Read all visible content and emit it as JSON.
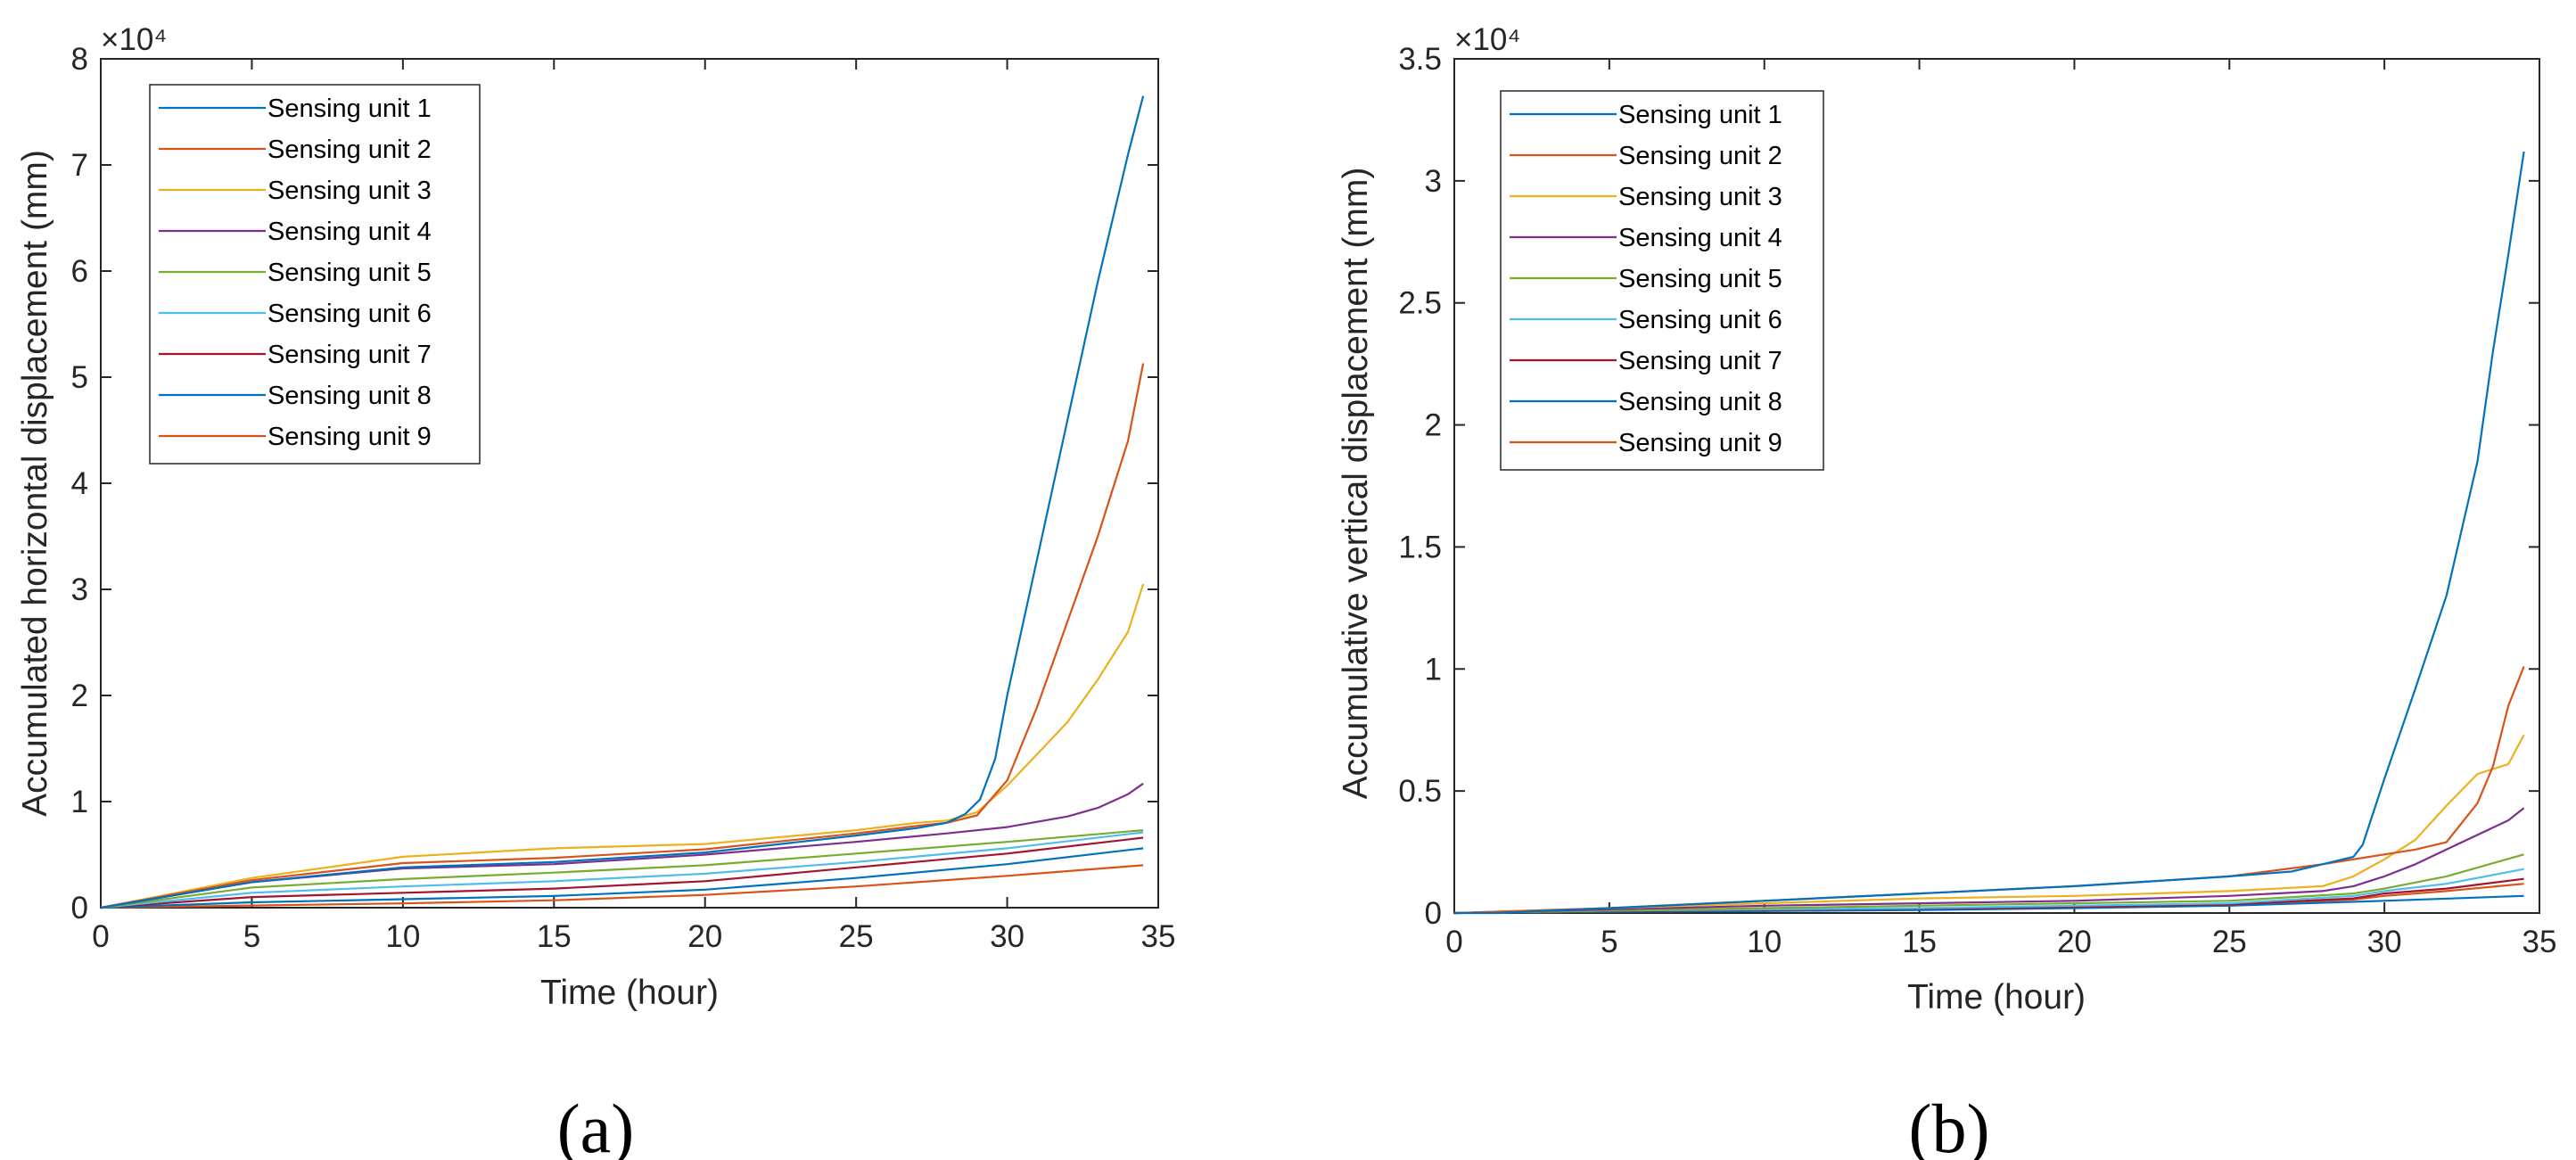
{
  "chart_data": [
    {
      "type": "line",
      "panel_label": "(a)",
      "xlabel": "Time (hour)",
      "ylabel": "Accumulated horizontal displacement (mm)",
      "exponent_label": "×10⁴",
      "xlim": [
        0,
        35
      ],
      "ylim": [
        0,
        8
      ],
      "xticks": [
        0,
        5,
        10,
        15,
        20,
        25,
        30,
        35
      ],
      "yticks": [
        0,
        1,
        2,
        3,
        4,
        5,
        6,
        7,
        8
      ],
      "ytick_labels": [
        "0",
        "1",
        "2",
        "3",
        "4",
        "5",
        "6",
        "7",
        "8"
      ],
      "grid": false,
      "legend_position": "top-left",
      "series": [
        {
          "name": "Sensing unit 1",
          "color": "#0072BD",
          "x": [
            0,
            5,
            10,
            15,
            20,
            25,
            27,
            28,
            28.6,
            29.1,
            29.6,
            30,
            31,
            32,
            33,
            34,
            34.5
          ],
          "y": [
            0,
            0.24,
            0.38,
            0.43,
            0.52,
            0.68,
            0.75,
            0.8,
            0.88,
            1.02,
            1.4,
            2.0,
            3.3,
            4.6,
            5.9,
            7.1,
            7.65
          ]
        },
        {
          "name": "Sensing unit 2",
          "color": "#D95319",
          "x": [
            0,
            5,
            10,
            15,
            20,
            25,
            27,
            28,
            29,
            30,
            31,
            32,
            33,
            34,
            34.5
          ],
          "y": [
            0,
            0.26,
            0.42,
            0.47,
            0.55,
            0.7,
            0.77,
            0.8,
            0.87,
            1.2,
            1.9,
            2.7,
            3.5,
            4.4,
            5.13
          ]
        },
        {
          "name": "Sensing unit 3",
          "color": "#EDB120",
          "x": [
            0,
            5,
            10,
            15,
            20,
            25,
            27,
            28,
            29,
            30,
            31,
            32,
            33,
            34,
            34.5
          ],
          "y": [
            0,
            0.28,
            0.48,
            0.56,
            0.6,
            0.73,
            0.8,
            0.82,
            0.9,
            1.15,
            1.45,
            1.75,
            2.15,
            2.6,
            3.05
          ]
        },
        {
          "name": "Sensing unit 4",
          "color": "#7E2F8E",
          "x": [
            0,
            5,
            10,
            15,
            20,
            25,
            28,
            30,
            32,
            33,
            34,
            34.5
          ],
          "y": [
            0,
            0.24,
            0.37,
            0.41,
            0.5,
            0.62,
            0.7,
            0.76,
            0.86,
            0.94,
            1.07,
            1.17
          ]
        },
        {
          "name": "Sensing unit 5",
          "color": "#77AC30",
          "x": [
            0,
            5,
            10,
            15,
            20,
            25,
            30,
            34.5
          ],
          "y": [
            0,
            0.19,
            0.27,
            0.33,
            0.4,
            0.51,
            0.62,
            0.73
          ]
        },
        {
          "name": "Sensing unit 6",
          "color": "#4DBEEE",
          "x": [
            0,
            5,
            10,
            15,
            20,
            25,
            30,
            34.5
          ],
          "y": [
            0,
            0.14,
            0.2,
            0.25,
            0.32,
            0.43,
            0.56,
            0.71
          ]
        },
        {
          "name": "Sensing unit 7",
          "color": "#A2142F",
          "x": [
            0,
            5,
            10,
            15,
            20,
            25,
            30,
            34.5
          ],
          "y": [
            0,
            0.1,
            0.14,
            0.18,
            0.25,
            0.38,
            0.51,
            0.66
          ]
        },
        {
          "name": "Sensing unit 8",
          "color": "#0072BD",
          "x": [
            0,
            5,
            10,
            15,
            20,
            25,
            30,
            34.5
          ],
          "y": [
            0,
            0.05,
            0.08,
            0.11,
            0.17,
            0.28,
            0.41,
            0.56
          ]
        },
        {
          "name": "Sensing unit 9",
          "color": "#D95319",
          "x": [
            0,
            5,
            10,
            15,
            20,
            25,
            30,
            34.5
          ],
          "y": [
            0,
            0.02,
            0.04,
            0.07,
            0.12,
            0.2,
            0.3,
            0.4
          ]
        }
      ]
    },
    {
      "type": "line",
      "panel_label": "(b)",
      "xlabel": "Time (hour)",
      "ylabel": "Accumulative vertical displacement (mm)",
      "exponent_label": "×10⁴",
      "xlim": [
        0,
        35
      ],
      "ylim": [
        0,
        3.5
      ],
      "xticks": [
        0,
        5,
        10,
        15,
        20,
        25,
        30,
        35
      ],
      "yticks": [
        0,
        0.5,
        1,
        1.5,
        2,
        2.5,
        3,
        3.5
      ],
      "ytick_labels": [
        "0",
        "0.5",
        "1",
        "1.5",
        "2",
        "2.5",
        "3",
        "3.5"
      ],
      "grid": false,
      "legend_position": "top-left",
      "series": [
        {
          "name": "Sensing unit 1",
          "color": "#0072BD",
          "x": [
            0,
            1.5,
            3,
            5,
            10,
            15,
            20,
            25,
            27,
            28,
            29,
            29.3,
            30,
            31,
            32,
            33,
            33.5,
            34,
            34.5
          ],
          "y": [
            0,
            0,
            0.01,
            0.02,
            0.05,
            0.08,
            0.11,
            0.15,
            0.17,
            0.2,
            0.23,
            0.28,
            0.55,
            0.92,
            1.3,
            1.85,
            2.3,
            2.7,
            3.12
          ]
        },
        {
          "name": "Sensing unit 2",
          "color": "#D95319",
          "x": [
            0,
            5,
            10,
            15,
            20,
            25,
            28,
            29,
            30,
            31,
            32,
            33,
            33.5,
            34,
            34.5
          ],
          "y": [
            0,
            0.02,
            0.05,
            0.08,
            0.11,
            0.15,
            0.2,
            0.22,
            0.24,
            0.26,
            0.29,
            0.45,
            0.6,
            0.85,
            1.01
          ]
        },
        {
          "name": "Sensing unit 3",
          "color": "#EDB120",
          "x": [
            0,
            5,
            10,
            15,
            20,
            25,
            28,
            29,
            30,
            31,
            32,
            33,
            34,
            34.5
          ],
          "y": [
            0,
            0.02,
            0.04,
            0.06,
            0.07,
            0.09,
            0.11,
            0.15,
            0.22,
            0.3,
            0.44,
            0.57,
            0.61,
            0.73
          ]
        },
        {
          "name": "Sensing unit 4",
          "color": "#7E2F8E",
          "x": [
            0,
            5,
            10,
            15,
            20,
            25,
            28,
            29,
            30,
            31,
            32,
            33,
            34,
            34.5
          ],
          "y": [
            0,
            0.015,
            0.03,
            0.04,
            0.05,
            0.07,
            0.09,
            0.11,
            0.15,
            0.2,
            0.26,
            0.32,
            0.38,
            0.43
          ]
        },
        {
          "name": "Sensing unit 5",
          "color": "#77AC30",
          "x": [
            0,
            5,
            10,
            15,
            20,
            25,
            29,
            30,
            32,
            34.5
          ],
          "y": [
            0,
            0.01,
            0.02,
            0.03,
            0.04,
            0.05,
            0.08,
            0.1,
            0.15,
            0.24
          ]
        },
        {
          "name": "Sensing unit 6",
          "color": "#4DBEEE",
          "x": [
            0,
            5,
            10,
            15,
            20,
            25,
            29,
            30,
            32,
            34.5
          ],
          "y": [
            0,
            0.01,
            0.015,
            0.02,
            0.03,
            0.04,
            0.07,
            0.09,
            0.12,
            0.18
          ]
        },
        {
          "name": "Sensing unit 7",
          "color": "#A2142F",
          "x": [
            0,
            5,
            10,
            15,
            20,
            25,
            29,
            30,
            32,
            34.5
          ],
          "y": [
            0,
            0.008,
            0.012,
            0.018,
            0.025,
            0.035,
            0.06,
            0.08,
            0.1,
            0.14
          ]
        },
        {
          "name": "Sensing unit 8",
          "color": "#0072BD",
          "x": [
            0,
            5,
            10,
            15,
            20,
            25,
            30,
            34.5
          ],
          "y": [
            0,
            0.005,
            0.008,
            0.012,
            0.02,
            0.03,
            0.05,
            0.07
          ]
        },
        {
          "name": "Sensing unit 9",
          "color": "#D95319",
          "x": [
            0,
            5,
            10,
            15,
            20,
            25,
            29,
            30,
            32,
            34.5
          ],
          "y": [
            0,
            0.006,
            0.01,
            0.015,
            0.022,
            0.032,
            0.055,
            0.07,
            0.09,
            0.12
          ]
        }
      ]
    }
  ]
}
